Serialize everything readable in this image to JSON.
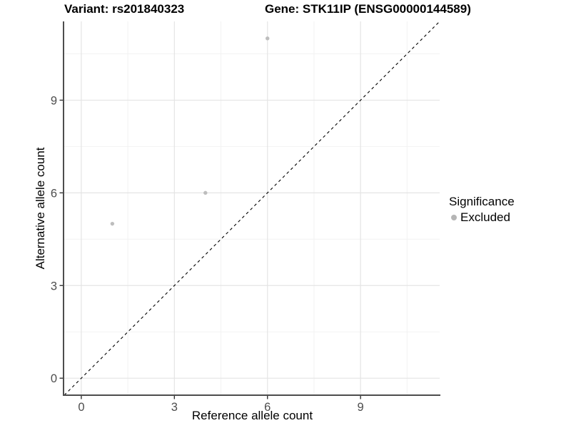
{
  "chart_data": {
    "type": "scatter",
    "title_left": "Variant: rs201840323",
    "title_right": "Gene: STK11IP (ENSG00000144589)",
    "xlabel": "Reference allele count",
    "ylabel": "Alternative allele count",
    "xlim": [
      -0.55,
      11.55
    ],
    "ylim": [
      -0.55,
      11.55
    ],
    "xticks": [
      0,
      3,
      6,
      9
    ],
    "yticks": [
      0,
      3,
      6,
      9
    ],
    "xticks_minor": [
      1.5,
      4.5,
      7.5,
      10.5
    ],
    "yticks_minor": [
      1.5,
      4.5,
      7.5,
      10.5
    ],
    "grid": "major+minor",
    "legend_position": "right",
    "series": [
      {
        "name": "Excluded",
        "points": [
          {
            "x": 1,
            "y": 5
          },
          {
            "x": 4,
            "y": 6
          },
          {
            "x": 6,
            "y": 11
          }
        ],
        "color": "#bdbdbd"
      }
    ],
    "reference_line": {
      "slope": 1,
      "intercept": 0,
      "style": "dashed",
      "color": "#000000"
    },
    "legend": {
      "title": "Significance",
      "items": [
        {
          "label": "Excluded",
          "color": "#b5b5b5"
        }
      ]
    }
  },
  "colors": {
    "background": "#ffffff",
    "axis_line": "#4d4d4d",
    "tick_mark": "#333333",
    "tick_label": "#4d4d4d",
    "grid_major": "#e4e4e4",
    "grid_minor": "#f2f2f2",
    "point": "#bdbdbd",
    "title_text": "#000000"
  }
}
